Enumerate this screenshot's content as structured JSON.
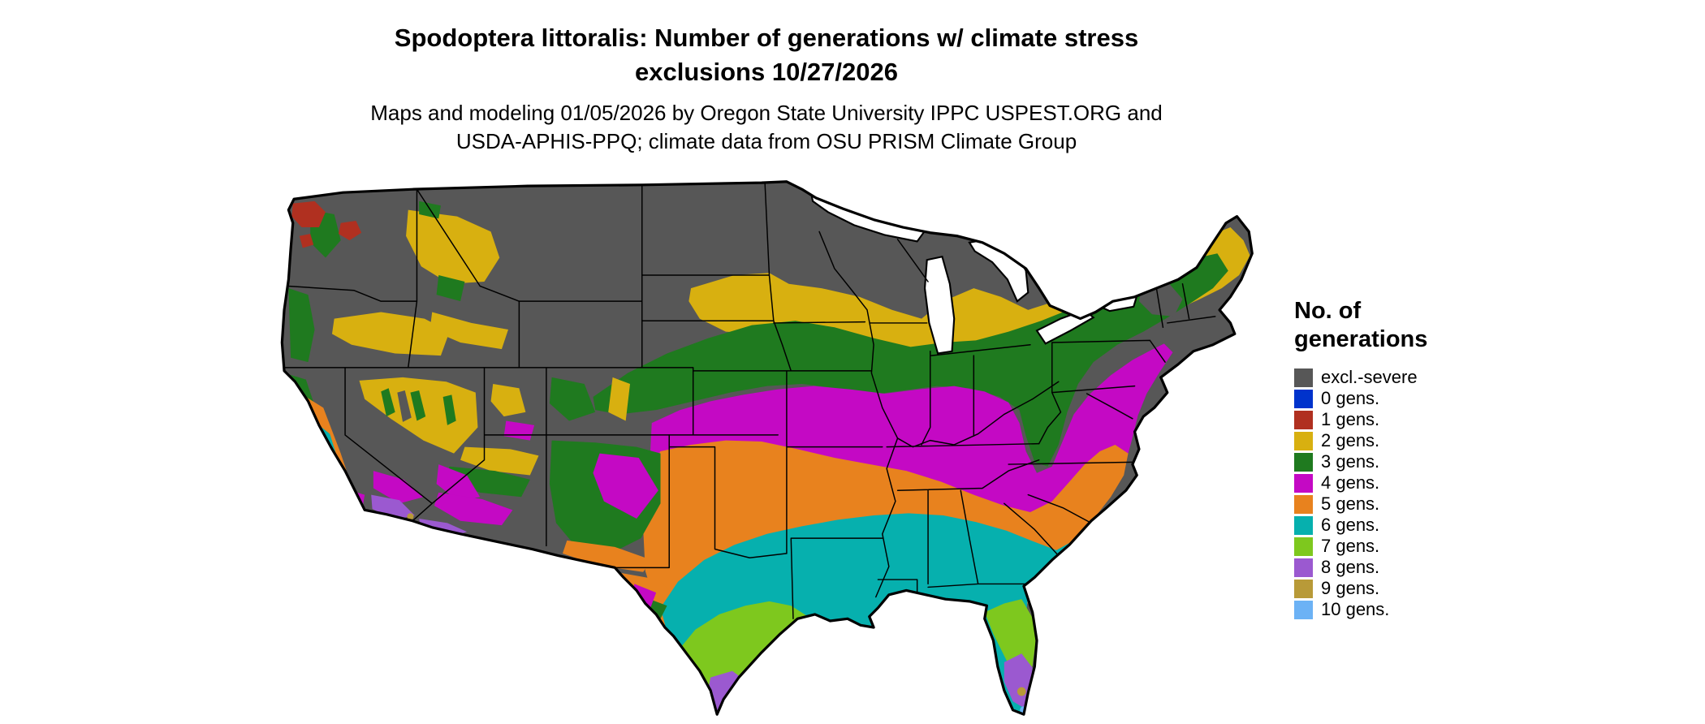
{
  "title": {
    "line1": "Spodoptera littoralis: Number of generations w/ climate stress",
    "line2": "exclusions 10/27/2026"
  },
  "subtitle": {
    "line1": "Maps and modeling 01/05/2026 by Oregon State University IPPC USPEST.ORG and",
    "line2": "USDA-APHIS-PPQ; climate data from OSU PRISM Climate Group"
  },
  "legend": {
    "title_line1": "No. of",
    "title_line2": "generations",
    "items": [
      {
        "label": "excl.-severe",
        "color": "#575757"
      },
      {
        "label": "0 gens.",
        "color": "#0033cc"
      },
      {
        "label": "1 gens.",
        "color": "#b03020"
      },
      {
        "label": "2 gens.",
        "color": "#d8b010"
      },
      {
        "label": "3 gens.",
        "color": "#1f7a1f"
      },
      {
        "label": "4 gens.",
        "color": "#c409c4"
      },
      {
        "label": "5 gens.",
        "color": "#e8821e"
      },
      {
        "label": "6 gens.",
        "color": "#06b0ae"
      },
      {
        "label": "7 gens.",
        "color": "#7ec81e"
      },
      {
        "label": "8 gens.",
        "color": "#9b59d0"
      },
      {
        "label": "9 gens.",
        "color": "#b89a38"
      },
      {
        "label": "10 gens.",
        "color": "#6cb2f5"
      }
    ]
  },
  "map": {
    "border_color": "#000000",
    "water_color": "#ffffff"
  }
}
